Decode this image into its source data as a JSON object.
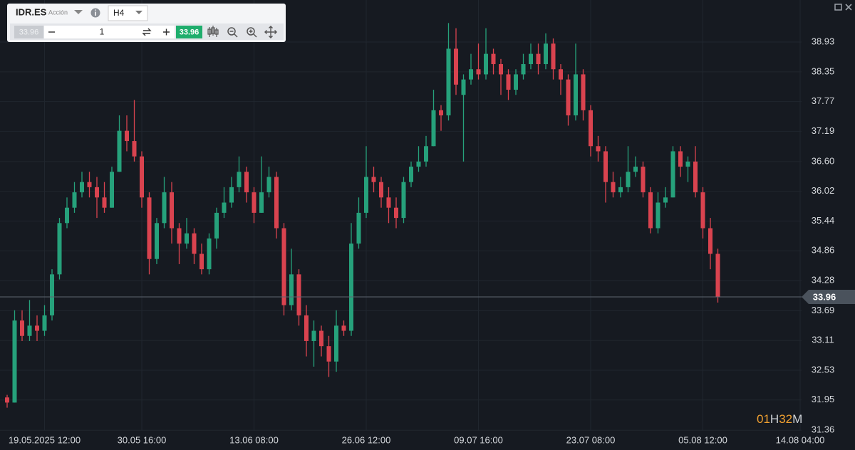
{
  "toolbar": {
    "symbol": "IDR.ES",
    "asset_type": "Acción",
    "timeframe": "H4",
    "bid": 33.96,
    "quantity": 1,
    "ask": 33.96
  },
  "chart_data": {
    "type": "candlestick",
    "categories": [
      null,
      null,
      null,
      null,
      null,
      "19.05.2025 12:00",
      null,
      null,
      null,
      null,
      null,
      null,
      null,
      null,
      null,
      null,
      null,
      null,
      "30.05 16:00",
      null,
      null,
      null,
      null,
      null,
      null,
      null,
      null,
      null,
      null,
      null,
      null,
      null,
      null,
      "13.06 08:00",
      null,
      null,
      null,
      null,
      null,
      null,
      null,
      null,
      null,
      null,
      null,
      null,
      null,
      null,
      "26.06 12:00",
      null,
      null,
      null,
      null,
      null,
      null,
      null,
      null,
      null,
      null,
      null,
      null,
      null,
      null,
      "09.07 16:00",
      null,
      null,
      null,
      null,
      null,
      null,
      null,
      null,
      null,
      null,
      null,
      null,
      null,
      null,
      "23.07 08:00",
      null,
      null,
      null,
      null,
      null,
      null,
      null,
      null,
      null,
      null,
      null,
      null,
      null,
      null,
      "05.08 12:00",
      null,
      null,
      null,
      null,
      null,
      null,
      null,
      null,
      null,
      null,
      null,
      null,
      "14.08 04:00"
    ],
    "open": [
      32.0,
      31.9,
      33.5,
      33.2,
      33.4,
      33.3,
      33.6,
      34.4,
      35.4,
      35.7,
      36.0,
      36.2,
      36.1,
      35.9,
      35.7,
      36.4,
      37.2,
      37.0,
      36.7,
      35.9,
      34.7,
      35.4,
      36.0,
      35.3,
      35.0,
      35.2,
      34.8,
      34.5,
      35.1,
      35.6,
      35.8,
      36.1,
      36.4,
      36.0,
      35.6,
      36.0,
      36.3,
      35.3,
      33.8,
      34.4,
      33.6,
      33.1,
      33.3,
      33.0,
      32.7,
      33.4,
      33.3,
      35.0,
      35.6,
      36.3,
      36.2,
      35.9,
      35.7,
      35.5,
      36.2,
      36.5,
      36.6,
      36.9,
      37.6,
      37.5,
      38.8,
      37.9,
      38.2,
      38.4,
      38.3,
      38.7,
      38.5,
      38.3,
      38.0,
      38.3,
      38.5,
      38.7,
      38.5,
      38.9,
      38.4,
      38.2,
      37.5,
      38.3,
      37.6,
      36.9,
      36.8,
      36.2,
      36.0,
      36.1,
      36.4,
      36.5,
      36.0,
      35.3,
      35.8,
      35.9,
      36.8,
      36.5,
      36.6,
      36.0,
      35.3,
      34.8,
      null,
      null,
      null,
      null,
      null,
      null,
      null,
      null,
      null,
      null,
      null
    ],
    "high": [
      32.05,
      33.7,
      33.7,
      33.9,
      33.6,
      33.8,
      34.5,
      35.5,
      35.9,
      36.2,
      36.4,
      36.4,
      36.3,
      36.2,
      36.5,
      37.5,
      37.5,
      37.8,
      36.8,
      36.0,
      35.5,
      36.3,
      36.2,
      35.4,
      35.5,
      35.3,
      35.0,
      35.2,
      35.7,
      36.1,
      36.3,
      36.7,
      36.5,
      36.1,
      36.7,
      36.5,
      36.4,
      35.4,
      34.9,
      34.5,
      33.8,
      33.5,
      33.4,
      33.2,
      33.7,
      33.5,
      35.4,
      35.9,
      36.9,
      36.5,
      36.3,
      36.1,
      35.9,
      36.3,
      36.6,
      36.9,
      37.1,
      38.0,
      37.7,
      39.3,
      39.2,
      38.3,
      38.7,
      38.9,
      39.2,
      38.8,
      38.6,
      38.4,
      38.4,
      38.7,
      38.9,
      38.9,
      39.1,
      39.0,
      38.5,
      38.3,
      38.9,
      38.4,
      37.7,
      37.1,
      36.9,
      36.4,
      36.3,
      36.9,
      36.7,
      36.6,
      36.1,
      36.0,
      36.1,
      36.9,
      36.9,
      36.7,
      36.9,
      36.1,
      35.5,
      34.9,
      null,
      null,
      null,
      null,
      null,
      null,
      null,
      null,
      null,
      null,
      null
    ],
    "low": [
      31.8,
      31.9,
      33.1,
      33.1,
      33.1,
      33.2,
      33.5,
      34.3,
      35.3,
      35.6,
      35.9,
      35.9,
      35.5,
      35.6,
      35.7,
      36.4,
      36.8,
      36.6,
      35.7,
      34.4,
      34.6,
      35.3,
      35.0,
      34.6,
      34.9,
      34.6,
      34.4,
      34.4,
      34.9,
      35.5,
      35.7,
      36.0,
      35.8,
      35.4,
      35.6,
      35.9,
      35.1,
      33.6,
      33.7,
      33.4,
      32.8,
      32.6,
      32.8,
      32.4,
      32.5,
      33.2,
      33.2,
      34.9,
      35.5,
      36.0,
      35.7,
      35.4,
      35.3,
      35.4,
      36.1,
      36.4,
      36.5,
      36.9,
      37.2,
      37.4,
      37.9,
      36.6,
      38.1,
      38.2,
      38.2,
      38.3,
      37.9,
      37.8,
      37.9,
      38.2,
      38.4,
      38.3,
      38.4,
      38.2,
      37.9,
      37.3,
      37.4,
      37.4,
      36.7,
      36.6,
      35.8,
      35.9,
      35.9,
      36.0,
      36.3,
      35.9,
      35.2,
      35.2,
      35.7,
      35.9,
      36.3,
      36.2,
      35.9,
      35.1,
      34.5,
      33.85,
      null,
      null,
      null,
      null,
      null,
      null,
      null,
      null,
      null,
      null,
      null
    ],
    "close": [
      31.9,
      33.5,
      33.2,
      33.4,
      33.3,
      33.6,
      34.4,
      35.4,
      35.7,
      36.0,
      36.2,
      36.1,
      35.9,
      35.7,
      36.4,
      37.2,
      37.0,
      36.7,
      35.9,
      34.7,
      35.4,
      36.0,
      35.3,
      35.0,
      35.2,
      34.8,
      34.5,
      35.1,
      35.6,
      35.8,
      36.1,
      36.4,
      36.0,
      35.6,
      36.0,
      36.3,
      35.3,
      33.8,
      34.4,
      33.6,
      33.1,
      33.3,
      33.0,
      32.7,
      33.4,
      33.3,
      35.0,
      35.6,
      36.3,
      36.2,
      35.9,
      35.7,
      35.5,
      36.2,
      36.5,
      36.6,
      36.9,
      37.6,
      37.5,
      38.8,
      38.1,
      38.2,
      38.4,
      38.3,
      38.7,
      38.5,
      38.3,
      38.0,
      38.3,
      38.5,
      38.7,
      38.5,
      38.9,
      38.4,
      38.2,
      37.5,
      38.3,
      37.6,
      36.9,
      36.8,
      36.2,
      36.0,
      36.1,
      36.4,
      36.5,
      36.0,
      35.3,
      35.8,
      35.9,
      36.8,
      36.5,
      36.6,
      36.0,
      35.3,
      34.8,
      33.96,
      null,
      null,
      null,
      null,
      null,
      null,
      null,
      null,
      null,
      null,
      null
    ],
    "up_color": "#26a17b",
    "down_color": "#d9434f",
    "ylim": [
      31.35,
      39.75
    ],
    "yticks": [
      31.36,
      31.95,
      32.53,
      33.11,
      33.69,
      34.28,
      34.86,
      35.44,
      36.02,
      {
        "value": 36.6,
        "label": "36.60"
      },
      37.19,
      37.77,
      38.35,
      38.93
    ],
    "grid": true,
    "last_price": 33.96,
    "countdown": [
      "01",
      "H",
      "32",
      "M"
    ]
  }
}
